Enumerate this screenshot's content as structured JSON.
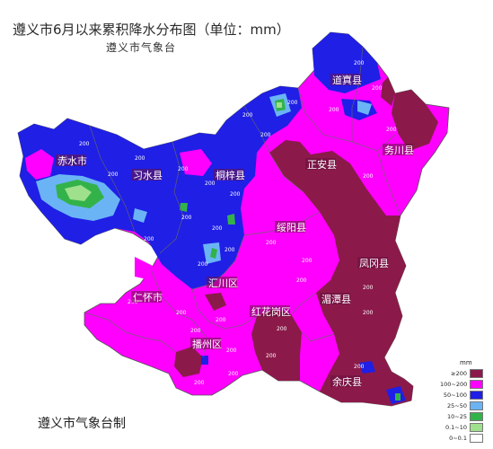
{
  "header": {
    "title": "遵义市6月以来累积降水分布图（单位：mm）",
    "subtitle": "遵义市气象台"
  },
  "footer": {
    "credit": "遵义市气象台制"
  },
  "colors": {
    "dark": "#8b1a4a",
    "magenta": "#ff00ff",
    "blue": "#1f1fe6",
    "lightblue": "#6ab4f5",
    "green": "#33b24a",
    "lightgreen": "#9ee08c",
    "white": "#ffffff"
  },
  "legend": {
    "unit": "mm",
    "items": [
      {
        "label": "≥200",
        "color": "#8b1a4a"
      },
      {
        "label": "100~200",
        "color": "#ff00ff"
      },
      {
        "label": "50~100",
        "color": "#1f1fe6"
      },
      {
        "label": "25~50",
        "color": "#6ab4f5"
      },
      {
        "label": "10~25",
        "color": "#33b24a"
      },
      {
        "label": "0.1~10",
        "color": "#9ee08c"
      },
      {
        "label": "0~0.1",
        "color": "#ffffff"
      }
    ]
  },
  "counties": [
    {
      "name": "道真县"
    },
    {
      "name": "务川县"
    },
    {
      "name": "正安县"
    },
    {
      "name": "习水县"
    },
    {
      "name": "桐梓县"
    },
    {
      "name": "赤水市"
    },
    {
      "name": "绥阳县"
    },
    {
      "name": "凤冈县"
    },
    {
      "name": "汇川区"
    },
    {
      "name": "湄潭县"
    },
    {
      "name": "仁怀市"
    },
    {
      "name": "红花岗区"
    },
    {
      "name": "播州区"
    },
    {
      "name": "余庆县"
    }
  ],
  "contour_label": "200"
}
